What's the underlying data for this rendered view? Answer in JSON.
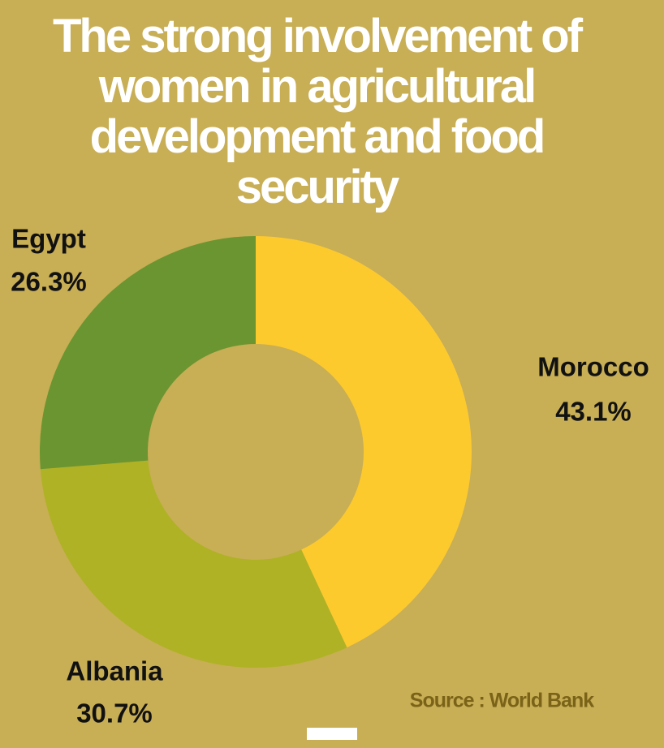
{
  "chart_data": {
    "type": "pie",
    "donut": true,
    "title": "The strong involvement of women in agricultural development and food security",
    "categories": [
      "Morocco",
      "Albania",
      "Egypt"
    ],
    "values": [
      43.1,
      30.7,
      26.3
    ],
    "value_labels": [
      "43.1%",
      "30.7%",
      "26.3%"
    ],
    "colors": [
      "#fdca2e",
      "#afb225",
      "#6a9530"
    ],
    "source": "Source : World Bank"
  }
}
